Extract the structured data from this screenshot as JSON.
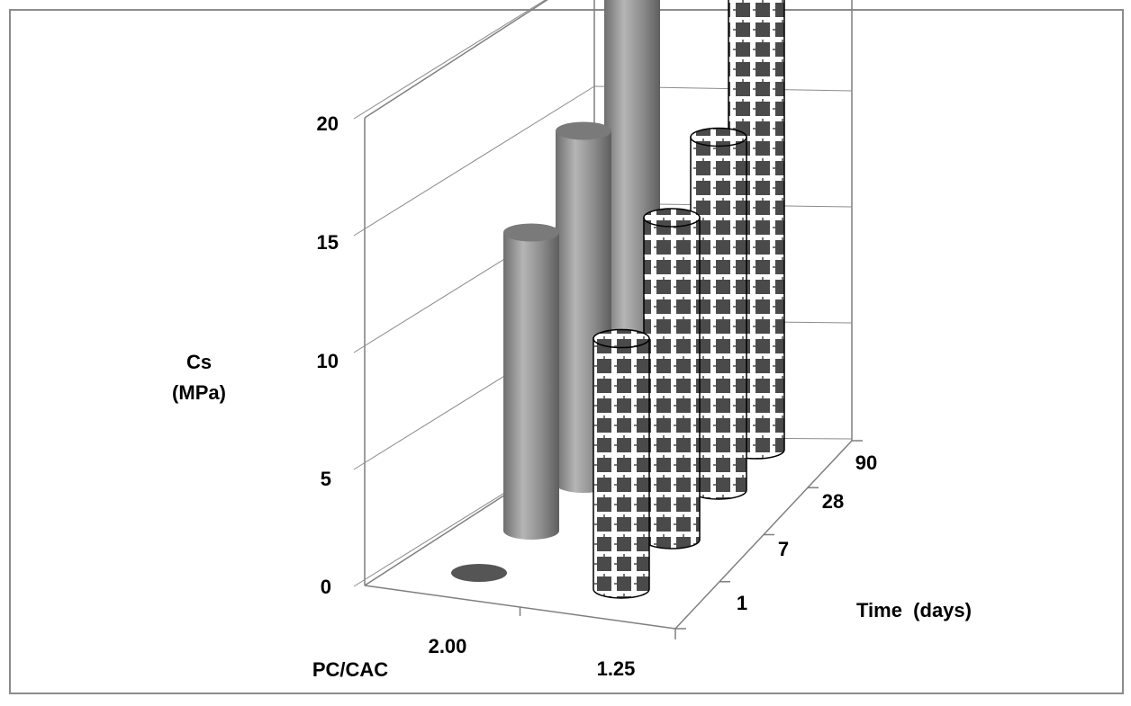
{
  "chart_data": {
    "type": "bar",
    "style": "3d-cylinder",
    "ylabel_line1": "Cs",
    "ylabel_line2": "(MPa)",
    "xlabel": "PC/CAC",
    "zlabel": "Time  (days)",
    "yticks": [
      "0",
      "5",
      "10",
      "15",
      "20"
    ],
    "ylim": [
      0,
      20
    ],
    "pc_cac_categories": [
      "2.00",
      "1.25"
    ],
    "time_categories": [
      "1",
      "7",
      "28",
      "90"
    ],
    "series": [
      {
        "pc_cac": "2.00",
        "fill": "solid-gray",
        "values": [
          0,
          12.5,
          14.8,
          21.4
        ]
      },
      {
        "pc_cac": "1.25",
        "fill": "checkered",
        "values": [
          10.5,
          13.5,
          14.8,
          19.5
        ]
      }
    ],
    "grid": true,
    "colors": {
      "solid": "#8a8a8a",
      "check_dark": "#5a5a5a",
      "frame": "#7f7f7f"
    }
  }
}
